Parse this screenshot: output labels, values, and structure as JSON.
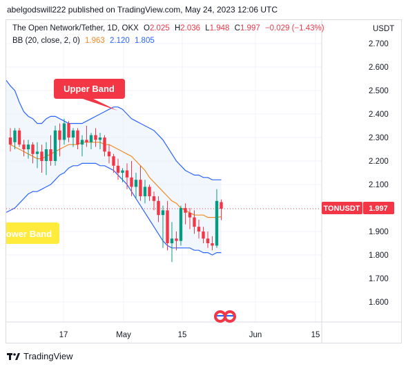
{
  "publisher": "abelgodswill222 published on TradingView.com, May 24, 2023 12:06 UTC",
  "legend": {
    "symbol": "The Open Network/Tether, 1D, OKX",
    "o_label": "O",
    "o": "2.025",
    "h_label": "H",
    "h": "2.036",
    "l_label": "L",
    "l": "1.948",
    "c_label": "C",
    "c": "1.997",
    "change": "−0.029 (−1.43%)",
    "bb_label": "BB (20, close, 2, 0)",
    "bb_basis": "1.963",
    "bb_upper": "2.120",
    "bb_lower": "1.805"
  },
  "price_label": {
    "ticker": "TONUSDT",
    "value": "1.997"
  },
  "annotations": {
    "upper": "Upper Band",
    "lower": "Lower Band"
  },
  "footer": {
    "brand": "TradingView"
  },
  "colors": {
    "up": "#089981",
    "down": "#f23645",
    "upper": "#2962ff",
    "lower": "#2962ff",
    "basis": "#f08a23",
    "fill": "#e8f1fb",
    "callout_red": "#f23645",
    "callout_yellow": "#ffeb3b"
  },
  "chart_data": {
    "type": "candlestick",
    "currency": "USDT",
    "ylim": [
      1.5,
      2.73
    ],
    "yticks": [
      "2.700",
      "2.600",
      "2.500",
      "2.400",
      "2.300",
      "2.200",
      "2.100",
      "1.900",
      "1.800",
      "1.700",
      "1.600"
    ],
    "xticks": [
      "17",
      "May",
      "15",
      "Jun",
      "15"
    ],
    "candles": [
      {
        "o": 2.3,
        "h": 2.34,
        "l": 2.24,
        "c": 2.27
      },
      {
        "o": 2.28,
        "h": 2.34,
        "l": 2.25,
        "c": 2.33
      },
      {
        "o": 2.33,
        "h": 2.34,
        "l": 2.26,
        "c": 2.27
      },
      {
        "o": 2.27,
        "h": 2.29,
        "l": 2.22,
        "c": 2.25
      },
      {
        "o": 2.25,
        "h": 2.29,
        "l": 2.21,
        "c": 2.27
      },
      {
        "o": 2.27,
        "h": 2.28,
        "l": 2.19,
        "c": 2.23
      },
      {
        "o": 2.23,
        "h": 2.28,
        "l": 2.17,
        "c": 2.24
      },
      {
        "o": 2.24,
        "h": 2.27,
        "l": 2.15,
        "c": 2.2
      },
      {
        "o": 2.2,
        "h": 2.28,
        "l": 2.14,
        "c": 2.25
      },
      {
        "o": 2.25,
        "h": 2.31,
        "l": 2.18,
        "c": 2.2
      },
      {
        "o": 2.2,
        "h": 2.35,
        "l": 2.18,
        "c": 2.33
      },
      {
        "o": 2.33,
        "h": 2.36,
        "l": 2.22,
        "c": 2.29
      },
      {
        "o": 2.29,
        "h": 2.38,
        "l": 2.27,
        "c": 2.36
      },
      {
        "o": 2.36,
        "h": 2.37,
        "l": 2.28,
        "c": 2.3
      },
      {
        "o": 2.3,
        "h": 2.34,
        "l": 2.26,
        "c": 2.33
      },
      {
        "o": 2.33,
        "h": 2.34,
        "l": 2.25,
        "c": 2.27
      },
      {
        "o": 2.27,
        "h": 2.31,
        "l": 2.22,
        "c": 2.29
      },
      {
        "o": 2.29,
        "h": 2.35,
        "l": 2.26,
        "c": 2.28
      },
      {
        "o": 2.28,
        "h": 2.32,
        "l": 2.25,
        "c": 2.31
      },
      {
        "o": 2.31,
        "h": 2.34,
        "l": 2.26,
        "c": 2.29
      },
      {
        "o": 2.29,
        "h": 2.32,
        "l": 2.25,
        "c": 2.3
      },
      {
        "o": 2.3,
        "h": 2.31,
        "l": 2.22,
        "c": 2.24
      },
      {
        "o": 2.24,
        "h": 2.27,
        "l": 2.19,
        "c": 2.22
      },
      {
        "o": 2.22,
        "h": 2.23,
        "l": 2.15,
        "c": 2.18
      },
      {
        "o": 2.18,
        "h": 2.21,
        "l": 2.12,
        "c": 2.15
      },
      {
        "o": 2.15,
        "h": 2.17,
        "l": 2.11,
        "c": 2.16
      },
      {
        "o": 2.16,
        "h": 2.19,
        "l": 2.08,
        "c": 2.13
      },
      {
        "o": 2.13,
        "h": 2.2,
        "l": 2.05,
        "c": 2.09
      },
      {
        "o": 2.09,
        "h": 2.15,
        "l": 2.04,
        "c": 2.12
      },
      {
        "o": 2.12,
        "h": 2.18,
        "l": 2.03,
        "c": 2.05
      },
      {
        "o": 2.05,
        "h": 2.12,
        "l": 2.02,
        "c": 2.09
      },
      {
        "o": 2.09,
        "h": 2.1,
        "l": 2.03,
        "c": 2.05
      },
      {
        "o": 2.05,
        "h": 2.07,
        "l": 1.99,
        "c": 2.03
      },
      {
        "o": 2.03,
        "h": 2.05,
        "l": 1.94,
        "c": 1.97
      },
      {
        "o": 1.97,
        "h": 2.01,
        "l": 1.83,
        "c": 1.99
      },
      {
        "o": 1.99,
        "h": 2.03,
        "l": 1.82,
        "c": 1.85
      },
      {
        "o": 1.85,
        "h": 1.94,
        "l": 1.77,
        "c": 1.87
      },
      {
        "o": 1.87,
        "h": 1.9,
        "l": 1.82,
        "c": 1.86
      },
      {
        "o": 1.86,
        "h": 2.01,
        "l": 1.84,
        "c": 2.0
      },
      {
        "o": 2.0,
        "h": 2.02,
        "l": 1.93,
        "c": 1.98
      },
      {
        "o": 1.98,
        "h": 2.0,
        "l": 1.91,
        "c": 1.96
      },
      {
        "o": 1.96,
        "h": 1.99,
        "l": 1.89,
        "c": 1.92
      },
      {
        "o": 1.92,
        "h": 1.95,
        "l": 1.87,
        "c": 1.9
      },
      {
        "o": 1.9,
        "h": 1.92,
        "l": 1.85,
        "c": 1.87
      },
      {
        "o": 1.87,
        "h": 1.9,
        "l": 1.83,
        "c": 1.85
      },
      {
        "o": 1.85,
        "h": 1.88,
        "l": 1.82,
        "c": 1.84
      },
      {
        "o": 1.84,
        "h": 2.08,
        "l": 1.83,
        "c": 2.03
      },
      {
        "o": 2.025,
        "h": 2.036,
        "l": 1.948,
        "c": 1.997
      }
    ],
    "upper": [
      2.52,
      2.5,
      2.45,
      2.41,
      2.39,
      2.38,
      2.36,
      2.36,
      2.38,
      2.39,
      2.39,
      2.38,
      2.37,
      2.36,
      2.36,
      2.36,
      2.36,
      2.37,
      2.38,
      2.39,
      2.4,
      2.41,
      2.42,
      2.43,
      2.43,
      2.42,
      2.4,
      2.38,
      2.37,
      2.36,
      2.35,
      2.34,
      2.33,
      2.31,
      2.29,
      2.26,
      2.23,
      2.2,
      2.18,
      2.16,
      2.15,
      2.14,
      2.14,
      2.13,
      2.13,
      2.12,
      2.12,
      2.12
    ],
    "lower": [
      1.99,
      2.0,
      2.02,
      2.04,
      2.06,
      2.07,
      2.07,
      2.08,
      2.09,
      2.1,
      2.12,
      2.14,
      2.15,
      2.17,
      2.18,
      2.18,
      2.19,
      2.19,
      2.19,
      2.19,
      2.18,
      2.18,
      2.17,
      2.16,
      2.14,
      2.12,
      2.1,
      2.07,
      2.04,
      2.01,
      1.98,
      1.95,
      1.92,
      1.89,
      1.86,
      1.84,
      1.83,
      1.83,
      1.83,
      1.83,
      1.83,
      1.82,
      1.82,
      1.81,
      1.81,
      1.8,
      1.81,
      1.81
    ],
    "basis": [
      2.27,
      2.26,
      2.25,
      2.24,
      2.23,
      2.22,
      2.21,
      2.21,
      2.22,
      2.23,
      2.24,
      2.25,
      2.26,
      2.27,
      2.27,
      2.27,
      2.28,
      2.28,
      2.28,
      2.28,
      2.28,
      2.27,
      2.27,
      2.26,
      2.25,
      2.24,
      2.23,
      2.22,
      2.2,
      2.18,
      2.16,
      2.13,
      2.11,
      2.09,
      2.07,
      2.05,
      2.03,
      2.02,
      2.0,
      1.99,
      1.98,
      1.97,
      1.97,
      1.97,
      1.96,
      1.96,
      1.96,
      1.963
    ],
    "last_price": 1.997
  }
}
